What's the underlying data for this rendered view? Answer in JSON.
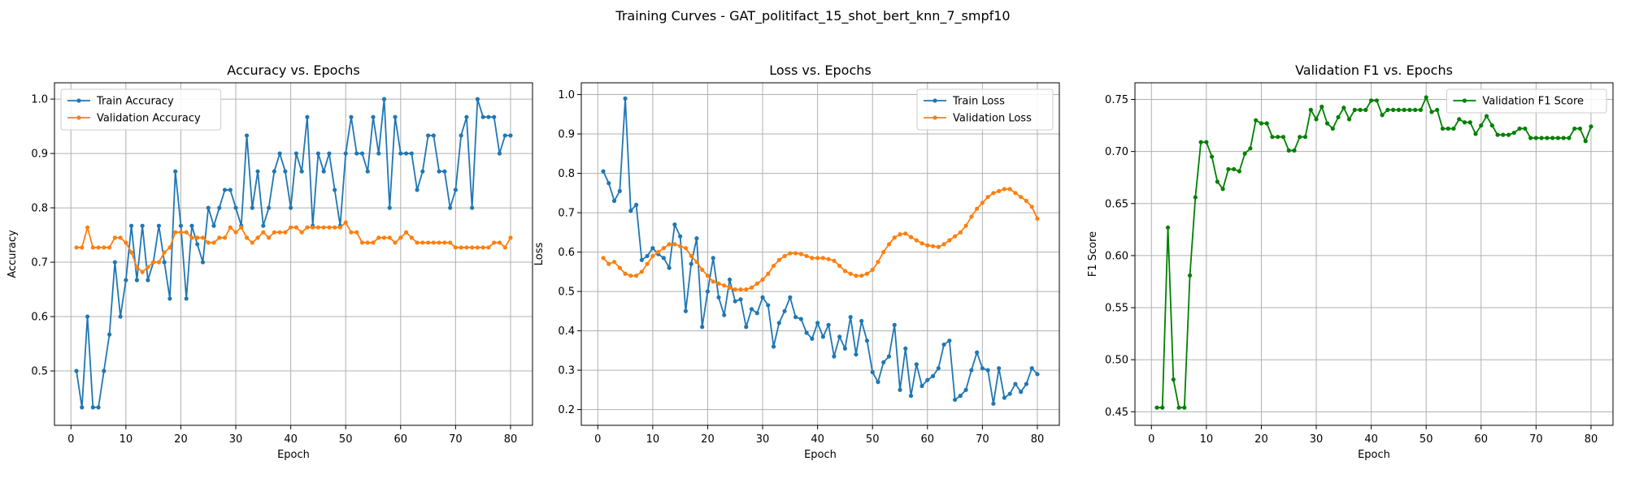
{
  "figure": {
    "suptitle": "Training Curves - GAT_politifact_15_shot_bert_knn_7_smpf10"
  },
  "colors": {
    "blue": "#1f77b4",
    "orange": "#ff7f0e",
    "green": "#008000",
    "grid": "#b0b0b0"
  },
  "chart_data": [
    {
      "type": "line",
      "title": "Accuracy vs. Epochs",
      "xlabel": "Epoch",
      "ylabel": "Accuracy",
      "xlim": [
        -3,
        84
      ],
      "ylim": [
        0.4,
        1.03
      ],
      "xticks": [
        0,
        10,
        20,
        30,
        40,
        50,
        60,
        70,
        80
      ],
      "yticks": [
        0.5,
        0.6,
        0.7,
        0.8,
        0.9,
        1.0
      ],
      "ytick_labels": [
        "0.5",
        "0.6",
        "0.7",
        "0.8",
        "0.9",
        "1.0"
      ],
      "grid": true,
      "legend_position": "top-left",
      "x_start": 1,
      "series": [
        {
          "name": "Train Accuracy",
          "color": "#1f77b4",
          "values": [
            0.5,
            0.433,
            0.6,
            0.433,
            0.433,
            0.5,
            0.567,
            0.7,
            0.6,
            0.667,
            0.767,
            0.667,
            0.767,
            0.667,
            0.7,
            0.767,
            0.7,
            0.633,
            0.867,
            0.767,
            0.633,
            0.767,
            0.733,
            0.7,
            0.8,
            0.767,
            0.8,
            0.833,
            0.833,
            0.8,
            0.767,
            0.933,
            0.8,
            0.867,
            0.767,
            0.8,
            0.867,
            0.9,
            0.867,
            0.8,
            0.9,
            0.867,
            0.967,
            0.767,
            0.9,
            0.867,
            0.9,
            0.833,
            0.767,
            0.9,
            0.967,
            0.9,
            0.9,
            0.867,
            0.967,
            0.9,
            1.0,
            0.8,
            0.967,
            0.9,
            0.9,
            0.9,
            0.833,
            0.867,
            0.933,
            0.933,
            0.867,
            0.867,
            0.8,
            0.833,
            0.933,
            0.967,
            0.8,
            1.0,
            0.967,
            0.967,
            0.967,
            0.9,
            0.933,
            0.933
          ]
        },
        {
          "name": "Validation Accuracy",
          "color": "#ff7f0e",
          "values": [
            0.727,
            0.727,
            0.764,
            0.727,
            0.727,
            0.727,
            0.727,
            0.745,
            0.745,
            0.736,
            0.718,
            0.691,
            0.682,
            0.691,
            0.7,
            0.7,
            0.718,
            0.727,
            0.755,
            0.755,
            0.755,
            0.745,
            0.745,
            0.745,
            0.736,
            0.736,
            0.745,
            0.745,
            0.764,
            0.755,
            0.764,
            0.745,
            0.736,
            0.745,
            0.755,
            0.745,
            0.755,
            0.755,
            0.755,
            0.764,
            0.764,
            0.755,
            0.764,
            0.764,
            0.764,
            0.764,
            0.764,
            0.764,
            0.764,
            0.773,
            0.755,
            0.755,
            0.736,
            0.736,
            0.736,
            0.745,
            0.745,
            0.745,
            0.736,
            0.745,
            0.755,
            0.745,
            0.736,
            0.736,
            0.736,
            0.736,
            0.736,
            0.736,
            0.736,
            0.727,
            0.727,
            0.727,
            0.727,
            0.727,
            0.727,
            0.727,
            0.736,
            0.736,
            0.727,
            0.745
          ]
        }
      ]
    },
    {
      "type": "line",
      "title": "Loss vs. Epochs",
      "xlabel": "Epoch",
      "ylabel": "Loss",
      "xlim": [
        -3,
        84
      ],
      "ylim": [
        0.16,
        1.03
      ],
      "xticks": [
        0,
        10,
        20,
        30,
        40,
        50,
        60,
        70,
        80
      ],
      "yticks": [
        0.2,
        0.3,
        0.4,
        0.5,
        0.6,
        0.7,
        0.8,
        0.9,
        1.0
      ],
      "ytick_labels": [
        "0.2",
        "0.3",
        "0.4",
        "0.5",
        "0.6",
        "0.7",
        "0.8",
        "0.9",
        "1.0"
      ],
      "grid": true,
      "legend_position": "top-right",
      "x_start": 1,
      "series": [
        {
          "name": "Train Loss",
          "color": "#1f77b4",
          "values": [
            0.805,
            0.775,
            0.73,
            0.755,
            0.99,
            0.705,
            0.72,
            0.58,
            0.59,
            0.61,
            0.595,
            0.585,
            0.56,
            0.67,
            0.64,
            0.45,
            0.57,
            0.635,
            0.41,
            0.5,
            0.585,
            0.485,
            0.44,
            0.53,
            0.475,
            0.48,
            0.41,
            0.455,
            0.445,
            0.485,
            0.465,
            0.36,
            0.42,
            0.45,
            0.485,
            0.435,
            0.43,
            0.395,
            0.38,
            0.42,
            0.385,
            0.415,
            0.335,
            0.385,
            0.355,
            0.435,
            0.34,
            0.425,
            0.375,
            0.295,
            0.27,
            0.32,
            0.335,
            0.415,
            0.25,
            0.355,
            0.235,
            0.315,
            0.26,
            0.275,
            0.285,
            0.305,
            0.365,
            0.375,
            0.225,
            0.235,
            0.25,
            0.3,
            0.345,
            0.305,
            0.3,
            0.215,
            0.305,
            0.23,
            0.24,
            0.265,
            0.245,
            0.265,
            0.305,
            0.29
          ]
        },
        {
          "name": "Validation Loss",
          "color": "#ff7f0e",
          "values": [
            0.585,
            0.57,
            0.575,
            0.56,
            0.545,
            0.54,
            0.54,
            0.55,
            0.57,
            0.59,
            0.6,
            0.61,
            0.62,
            0.62,
            0.615,
            0.61,
            0.59,
            0.575,
            0.555,
            0.54,
            0.525,
            0.52,
            0.515,
            0.51,
            0.505,
            0.505,
            0.505,
            0.51,
            0.52,
            0.53,
            0.545,
            0.565,
            0.58,
            0.59,
            0.597,
            0.597,
            0.595,
            0.59,
            0.585,
            0.585,
            0.585,
            0.582,
            0.578,
            0.565,
            0.552,
            0.545,
            0.54,
            0.54,
            0.545,
            0.555,
            0.575,
            0.6,
            0.62,
            0.637,
            0.645,
            0.647,
            0.638,
            0.63,
            0.622,
            0.617,
            0.615,
            0.613,
            0.62,
            0.63,
            0.64,
            0.65,
            0.667,
            0.69,
            0.71,
            0.725,
            0.74,
            0.75,
            0.755,
            0.76,
            0.76,
            0.75,
            0.74,
            0.73,
            0.715,
            0.685
          ]
        }
      ]
    },
    {
      "type": "line",
      "title": "Validation F1 vs. Epochs",
      "xlabel": "Epoch",
      "ylabel": "F1 Score",
      "xlim": [
        -3,
        84
      ],
      "ylim": [
        0.437,
        0.766
      ],
      "xticks": [
        0,
        10,
        20,
        30,
        40,
        50,
        60,
        70,
        80
      ],
      "yticks": [
        0.45,
        0.5,
        0.55,
        0.6,
        0.65,
        0.7,
        0.75
      ],
      "ytick_labels": [
        "0.45",
        "0.50",
        "0.55",
        "0.60",
        "0.65",
        "0.70",
        "0.75"
      ],
      "grid": true,
      "legend_position": "top-right",
      "x_start": 1,
      "series": [
        {
          "name": "Validation F1 Score",
          "color": "#008000",
          "values": [
            0.454,
            0.454,
            0.627,
            0.481,
            0.454,
            0.454,
            0.581,
            0.656,
            0.709,
            0.709,
            0.695,
            0.671,
            0.664,
            0.683,
            0.683,
            0.681,
            0.698,
            0.703,
            0.73,
            0.727,
            0.727,
            0.714,
            0.714,
            0.714,
            0.701,
            0.701,
            0.714,
            0.714,
            0.74,
            0.731,
            0.743,
            0.727,
            0.722,
            0.733,
            0.742,
            0.731,
            0.74,
            0.74,
            0.74,
            0.749,
            0.749,
            0.735,
            0.74,
            0.74,
            0.74,
            0.74,
            0.74,
            0.74,
            0.74,
            0.752,
            0.738,
            0.74,
            0.722,
            0.722,
            0.722,
            0.731,
            0.728,
            0.728,
            0.717,
            0.725,
            0.734,
            0.725,
            0.716,
            0.716,
            0.716,
            0.718,
            0.722,
            0.722,
            0.713,
            0.713,
            0.713,
            0.713,
            0.713,
            0.713,
            0.713,
            0.713,
            0.722,
            0.722,
            0.71,
            0.724
          ]
        }
      ]
    }
  ]
}
